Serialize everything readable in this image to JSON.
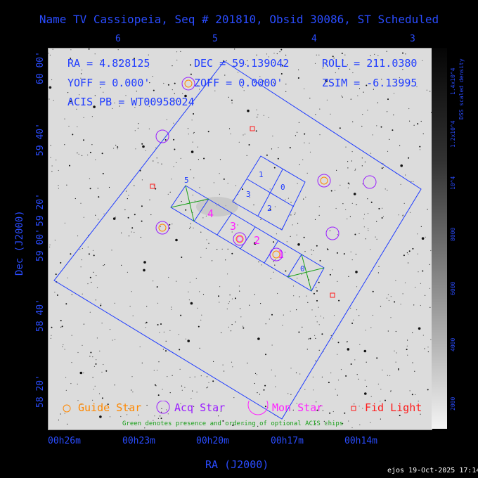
{
  "title": "Name TV Cassiopeia, Seq # 201810, Obsid 30086, ST Scheduled",
  "fields": {
    "ra": "RA = 4.828125",
    "dec": "DEC = 59.139042",
    "roll": "ROLL = 211.0380",
    "yoff": "YOFF =   0.000'",
    "zoff": "ZOFF =   0.0000'",
    "zsim": "ZSIM = -6.13995",
    "acis_pb": "ACIS PB = WT00958024"
  },
  "top_ticks": [
    "6",
    "5",
    "4",
    "3"
  ],
  "bottom_ticks": [
    "00h26m",
    "00h23m",
    "00h20m",
    "00h17m",
    "00h14m"
  ],
  "left_ticks": [
    "60 00'",
    "59 40'",
    "59 20'",
    "59 00'",
    "58 40'",
    "58 20'"
  ],
  "xlabel": "RA (J2000)",
  "ylabel": "Dec (J2000)",
  "colorbar": {
    "label": "DSS scaled density",
    "ticks": [
      "2000",
      "4000",
      "6000",
      "8000",
      "10^4",
      "1.2x10^4",
      "1.4x10^4"
    ]
  },
  "chips_acis_s": [
    "5",
    "4",
    "3",
    "2",
    "1",
    "0"
  ],
  "chips_acis_i": [
    "1",
    "0",
    "3",
    "2"
  ],
  "legend": {
    "guide": "Guide Star",
    "acq": "Acq Star",
    "mon": "Mon Star",
    "fid": "Fid Light",
    "note": "Green denotes presence and ordering of optional ACIS chips"
  },
  "colors": {
    "blue": "#1f3cff",
    "guide": "#ff8800",
    "acq": "#9a1cff",
    "mon": "#ff22ff",
    "fid": "#ff1a1a",
    "optional": "#1aa01a"
  },
  "footer": "ejos 19-Oct-2025 17:14"
}
